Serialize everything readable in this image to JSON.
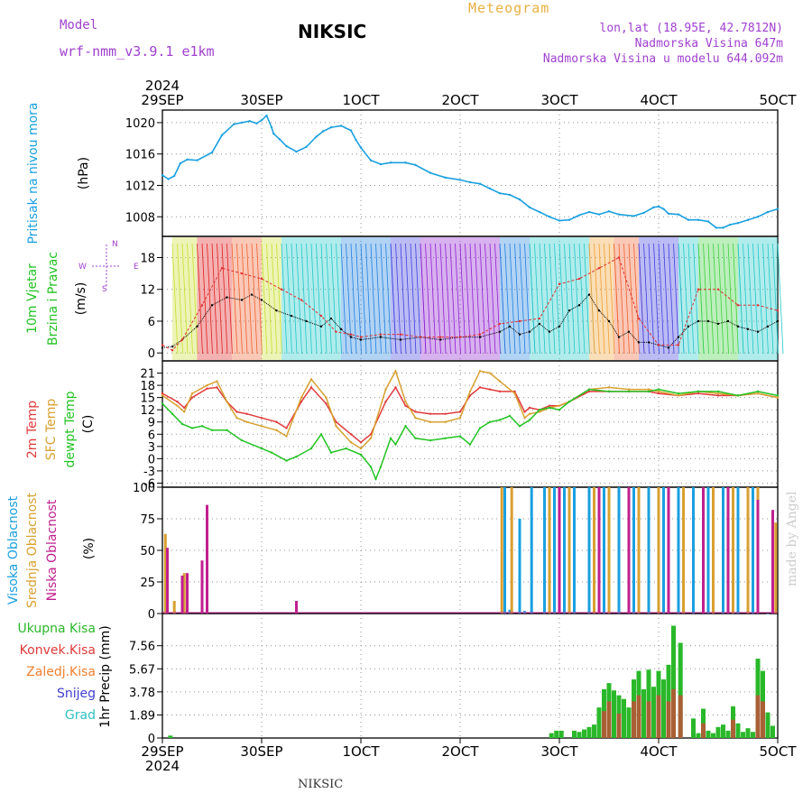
{
  "header": {
    "model_label": "Model",
    "model_name": "wrf-nmm_v3.9.1 e1km",
    "chart_kind": "Meteogram",
    "station": "NIKSIC",
    "coords": "lon,lat (18.95E, 42.7812N)",
    "elevation": "Nadmorska Visina 647m",
    "elevation_model": "Nadmorska Visina u modelu 644.092m",
    "footer_station": "NIKSIC",
    "credit": "made by Angel"
  },
  "colors": {
    "pressure": "#1aa0e0",
    "wind_black": "#000000",
    "wind_red": "#e03030",
    "temp2m": "#e03a3a",
    "sfc_temp": "#d8a030",
    "dewpt": "#22c322",
    "cloud_high": "#1aa0e0",
    "cloud_mid": "#d8a030",
    "cloud_low": "#c0208f",
    "precip_total": "#2ab82a",
    "precip_conv": "#e03a3a",
    "precip_frozen": "#f08030",
    "snow": "#4040d0",
    "hail": "#30c0c0",
    "grid": "#909090"
  },
  "chart_data": [
    {
      "type": "line",
      "panel": "pressure",
      "ylabel_lines": [
        "Pritisak na nivou mora",
        "(hPa)"
      ],
      "x_year_top": "2024",
      "x_year_bottom": "2024",
      "x_ticklabels": [
        "29SEP",
        "30SEP",
        "1OCT",
        "2OCT",
        "3OCT",
        "4OCT",
        "5OCT"
      ],
      "yticks": [
        "1020",
        "1016",
        "1012",
        "1008"
      ],
      "ylim": [
        1005.5,
        1021.6
      ],
      "series": [
        {
          "x": [
            0,
            0.06,
            0.12,
            0.18,
            0.25,
            0.35,
            0.5,
            0.6,
            0.72,
            0.8,
            0.88,
            0.95,
            1.0,
            1.05,
            1.1,
            1.12,
            1.18,
            1.25,
            1.35,
            1.45,
            1.55,
            1.62,
            1.7,
            1.8,
            1.9,
            1.95,
            2.0,
            2.1,
            2.2,
            2.3,
            2.45,
            2.55,
            2.7,
            2.85,
            3.0,
            3.1,
            3.2,
            3.3,
            3.4,
            3.5,
            3.6,
            3.7,
            3.8,
            3.9,
            4.0,
            4.1,
            4.2,
            4.3,
            4.4,
            4.5,
            4.6,
            4.75,
            4.85,
            4.95,
            5.0,
            5.05,
            5.1,
            5.2,
            5.3,
            5.4,
            5.5,
            5.58,
            5.65,
            5.72,
            5.8,
            5.9,
            6.0,
            6.1,
            6.2
          ],
          "y": [
            1013.3,
            1012.8,
            1013.2,
            1014.8,
            1015.3,
            1015.2,
            1016.2,
            1018.4,
            1019.8,
            1020.0,
            1020.2,
            1019.9,
            1020.3,
            1020.9,
            1019.4,
            1018.6,
            1017.9,
            1017.0,
            1016.3,
            1016.9,
            1018.2,
            1018.9,
            1019.4,
            1019.6,
            1019.0,
            1017.8,
            1016.8,
            1015.2,
            1014.7,
            1014.9,
            1014.9,
            1014.6,
            1013.6,
            1013.0,
            1012.7,
            1012.4,
            1012.2,
            1011.6,
            1011.0,
            1010.8,
            1010.2,
            1009.2,
            1008.6,
            1008.0,
            1007.5,
            1007.6,
            1008.2,
            1008.6,
            1008.3,
            1008.7,
            1008.3,
            1008.1,
            1008.5,
            1009.2,
            1009.3,
            1009.0,
            1008.4,
            1008.3,
            1007.6,
            1007.6,
            1007.4,
            1006.6,
            1006.6,
            1007.0,
            1007.2,
            1007.6,
            1008.0,
            1008.6,
            1009.0
          ]
        }
      ]
    },
    {
      "type": "line",
      "panel": "wind",
      "ylabel_lines": [
        "10m Vjetar",
        "Brzina i Pravac",
        "(m/s)"
      ],
      "compass": {
        "n": "N",
        "w": "W",
        "e": "E",
        "s": "S"
      },
      "yticks": [
        "18",
        "12",
        "6",
        "0"
      ],
      "ylim": [
        -1.5,
        22
      ],
      "series": [
        {
          "name": "speed",
          "x": [
            0,
            0.1,
            0.2,
            0.35,
            0.5,
            0.65,
            0.8,
            0.9,
            1.0,
            1.15,
            1.3,
            1.45,
            1.6,
            1.7,
            1.8,
            1.9,
            2.0,
            2.2,
            2.4,
            2.6,
            2.8,
            3.0,
            3.2,
            3.4,
            3.5,
            3.6,
            3.7,
            3.8,
            3.9,
            4.0,
            4.1,
            4.2,
            4.3,
            4.4,
            4.5,
            4.6,
            4.7,
            4.8,
            4.9,
            5.0,
            5.1,
            5.2,
            5.3,
            5.4,
            5.5,
            5.6,
            5.7,
            5.8,
            5.9,
            6.0,
            6.1,
            6.2
          ],
          "y": [
            1.0,
            1.2,
            2.5,
            5.0,
            9.0,
            10.5,
            10.0,
            11.0,
            10.0,
            8.0,
            7.0,
            6.0,
            5.0,
            6.5,
            4.5,
            3.0,
            2.5,
            3.0,
            2.5,
            3.0,
            2.5,
            3.0,
            3.0,
            4.0,
            5.0,
            3.5,
            4.0,
            5.5,
            4.0,
            5.0,
            8.0,
            9.0,
            11.0,
            8.0,
            6.0,
            3.0,
            4.0,
            2.0,
            2.0,
            1.5,
            1.0,
            3.0,
            5.0,
            6.0,
            6.0,
            5.5,
            6.0,
            5.0,
            4.5,
            4.0,
            5.0,
            6.0
          ]
        },
        {
          "name": "gust",
          "x": [
            0,
            0.1,
            0.2,
            0.4,
            0.6,
            0.8,
            1.0,
            1.2,
            1.4,
            1.6,
            1.75,
            1.9,
            2.0,
            2.2,
            2.4,
            2.6,
            2.8,
            3.0,
            3.2,
            3.4,
            3.6,
            3.8,
            4.0,
            4.2,
            4.4,
            4.6,
            4.8,
            5.0,
            5.2,
            5.4,
            5.6,
            5.8,
            6.0,
            6.2
          ],
          "y": [
            1.5,
            0.5,
            2.5,
            9.0,
            16.0,
            15.0,
            14.0,
            12.0,
            10.0,
            7.0,
            4.0,
            3.5,
            3.0,
            3.5,
            3.5,
            3.0,
            3.0,
            3.0,
            3.5,
            5.5,
            6.0,
            6.5,
            13.0,
            14.0,
            16.0,
            18.0,
            6.5,
            1.5,
            1.5,
            12.0,
            12.0,
            9.0,
            9.0,
            8.0
          ]
        }
      ]
    },
    {
      "type": "line",
      "panel": "temperature",
      "ylabel_lines": [
        "2m Temp",
        "SFC Temp",
        "dewpt Temp",
        "(C)"
      ],
      "yticks": [
        "21",
        "18",
        "15",
        "12",
        "9",
        "6",
        "3",
        "0",
        "-3",
        "-6"
      ],
      "ylim": [
        -7,
        24
      ],
      "series": [
        {
          "name": "2m Temp",
          "x": [
            0,
            0.15,
            0.22,
            0.3,
            0.45,
            0.55,
            0.65,
            0.75,
            0.85,
            1.0,
            1.15,
            1.25,
            1.4,
            1.5,
            1.65,
            1.75,
            1.9,
            2.0,
            2.1,
            2.25,
            2.35,
            2.45,
            2.55,
            2.7,
            2.85,
            3.0,
            3.1,
            3.2,
            3.3,
            3.4,
            3.55,
            3.65,
            3.7,
            3.8,
            3.9,
            4.0,
            4.1,
            4.3,
            4.5,
            4.7,
            4.9,
            5.0,
            5.2,
            5.4,
            5.6,
            5.8,
            6.0,
            6.2
          ],
          "y": [
            16,
            14,
            12.5,
            15,
            17.2,
            17.5,
            14,
            11.5,
            11,
            10,
            9,
            7.5,
            14,
            17.5,
            13.5,
            9,
            6,
            4,
            6,
            14,
            17.5,
            13,
            11.5,
            11,
            11,
            11.5,
            15.5,
            17.5,
            17,
            16.5,
            16.5,
            11.5,
            12.5,
            12,
            13,
            13,
            14,
            16.5,
            16.5,
            16.5,
            16.5,
            16,
            15.5,
            16,
            15.5,
            15.5,
            16,
            15
          ]
        },
        {
          "name": "SFC Temp",
          "x": [
            0,
            0.15,
            0.22,
            0.3,
            0.45,
            0.55,
            0.65,
            0.75,
            0.85,
            1.0,
            1.15,
            1.25,
            1.4,
            1.5,
            1.65,
            1.75,
            1.9,
            2.0,
            2.1,
            2.25,
            2.35,
            2.45,
            2.55,
            2.7,
            2.85,
            3.0,
            3.1,
            3.2,
            3.3,
            3.4,
            3.55,
            3.65,
            3.7,
            3.8,
            3.9,
            4.0,
            4.1,
            4.3,
            4.5,
            4.7,
            4.9,
            5.0,
            5.2,
            5.4,
            5.6,
            5.8,
            6.0,
            6.2
          ],
          "y": [
            15.5,
            13,
            11.5,
            16,
            18,
            19,
            14,
            10,
            9,
            8,
            7,
            5.5,
            15,
            19.5,
            15,
            8,
            4,
            2.5,
            5,
            17,
            21.5,
            14,
            10,
            9,
            9,
            10,
            16.5,
            21.5,
            21,
            19,
            16,
            10,
            11,
            11.5,
            12.5,
            13,
            14,
            17,
            17.5,
            17,
            17,
            16.5,
            15.5,
            16.5,
            16,
            15.5,
            16,
            15
          ]
        },
        {
          "name": "dewpt Temp",
          "x": [
            0,
            0.1,
            0.2,
            0.3,
            0.4,
            0.5,
            0.65,
            0.8,
            1.0,
            1.1,
            1.25,
            1.35,
            1.5,
            1.6,
            1.7,
            1.85,
            2.0,
            2.1,
            2.15,
            2.2,
            2.3,
            2.35,
            2.45,
            2.55,
            2.7,
            2.85,
            3.0,
            3.1,
            3.2,
            3.3,
            3.4,
            3.5,
            3.6,
            3.7,
            3.8,
            3.9,
            4.0,
            4.1,
            4.3,
            4.5,
            4.7,
            4.9,
            5.0,
            5.2,
            5.4,
            5.6,
            5.8,
            6.0,
            6.2
          ],
          "y": [
            13.5,
            11,
            8.5,
            7.5,
            8,
            7,
            7,
            4.5,
            2.5,
            1.5,
            -0.5,
            0.5,
            2.5,
            6,
            1.5,
            2.5,
            1,
            -2,
            -5,
            -2,
            5,
            3.5,
            8,
            5,
            4.5,
            5,
            5.5,
            3.5,
            7.5,
            9,
            9.5,
            10.5,
            8,
            9.5,
            12,
            12.5,
            12,
            14,
            17,
            16.5,
            16.5,
            16.5,
            17,
            16,
            16.5,
            16.5,
            15.5,
            16.5,
            15.5
          ]
        }
      ]
    },
    {
      "type": "bar",
      "panel": "cloud",
      "ylabel_lines": [
        "Visoka Oblacnost",
        "Srednja Oblacnost",
        "Niska Oblacnost",
        "(%)"
      ],
      "yticks": [
        "100",
        "75",
        "50",
        "25",
        "0"
      ],
      "ylim": [
        0,
        100
      ],
      "series": [
        {
          "name": "Visoka Oblacnost",
          "x": [
            3.45,
            3.5,
            3.6,
            3.65,
            3.72,
            3.85,
            3.95,
            4.05,
            4.15,
            4.3,
            4.45,
            4.6,
            4.75,
            4.9,
            5.05,
            5.2,
            5.35,
            5.5,
            5.65,
            5.8,
            5.95,
            6.1
          ],
          "y": [
            100,
            3,
            75,
            2,
            100,
            100,
            100,
            100,
            100,
            100,
            100,
            100,
            100,
            100,
            100,
            100,
            100,
            100,
            100,
            100,
            100,
            0
          ]
        },
        {
          "name": "Srednja Oblacnost",
          "x": [
            0.03,
            0.12,
            0.22,
            3.42,
            3.52,
            3.9,
            4.1,
            4.35,
            4.5,
            4.8,
            5.0,
            5.25,
            5.55,
            5.75,
            5.9,
            6.0,
            6.18
          ],
          "y": [
            63,
            10,
            32,
            100,
            100,
            100,
            100,
            100,
            100,
            100,
            100,
            100,
            100,
            100,
            100,
            100,
            72
          ]
        },
        {
          "name": "Niska Oblacnost",
          "x": [
            0.05,
            0.2,
            0.25,
            0.4,
            0.45,
            1.35,
            4.0,
            4.4,
            4.7,
            5.1,
            5.45,
            5.7,
            6.0,
            6.15
          ],
          "y": [
            52,
            30,
            32,
            42,
            86,
            10,
            100,
            100,
            100,
            100,
            100,
            100,
            90,
            82
          ]
        }
      ]
    },
    {
      "type": "bar",
      "panel": "precip",
      "ylabel_lines": [
        "1hr Precip (mm)"
      ],
      "legend": [
        "Ukupna Kisa",
        "Konvek.Kisa",
        "Zaledj.Kisa",
        "Snijeg",
        "Grad"
      ],
      "yticks": [
        "7.56",
        "5.67",
        "3.78",
        "1.89",
        "0"
      ],
      "ylim": [
        0,
        10.2
      ],
      "series": [
        {
          "name": "Ukupna Kisa",
          "x": [
            0.08,
            3.92,
            3.97,
            4.02,
            4.15,
            4.2,
            4.25,
            4.3,
            4.35,
            4.4,
            4.45,
            4.5,
            4.55,
            4.6,
            4.65,
            4.7,
            4.75,
            4.8,
            4.85,
            4.9,
            4.95,
            5.0,
            5.05,
            5.1,
            5.15,
            5.22,
            5.35,
            5.4,
            5.45,
            5.5,
            5.55,
            5.6,
            5.65,
            5.7,
            5.75,
            5.8,
            5.85,
            5.9,
            5.95,
            6.0,
            6.05,
            6.1,
            6.15
          ],
          "y": [
            0.2,
            0.4,
            0.6,
            0.6,
            0.6,
            0.5,
            0.7,
            0.9,
            1.1,
            2.5,
            4.0,
            4.5,
            3.9,
            3.5,
            3.2,
            2.5,
            4.8,
            5.5,
            4.0,
            5.6,
            4.2,
            5.5,
            4.8,
            6.0,
            9.2,
            7.8,
            1.6,
            0.4,
            2.4,
            0.6,
            0.4,
            0.9,
            1.1,
            0.6,
            2.6,
            1.2,
            0.5,
            0.8,
            0.5,
            6.5,
            5.5,
            2.1,
            1.0
          ]
        },
        {
          "name": "Konvek.Kisa",
          "x": [
            4.45,
            4.5,
            4.6,
            4.75,
            4.8,
            4.9,
            5.0,
            5.1,
            5.15,
            5.22,
            5.45,
            5.75,
            6.0,
            6.05
          ],
          "y": [
            2.2,
            3.0,
            2.0,
            3.0,
            3.5,
            3.0,
            3.5,
            3.0,
            4.0,
            3.5,
            1.2,
            1.5,
            3.5,
            3.0
          ]
        }
      ]
    }
  ]
}
